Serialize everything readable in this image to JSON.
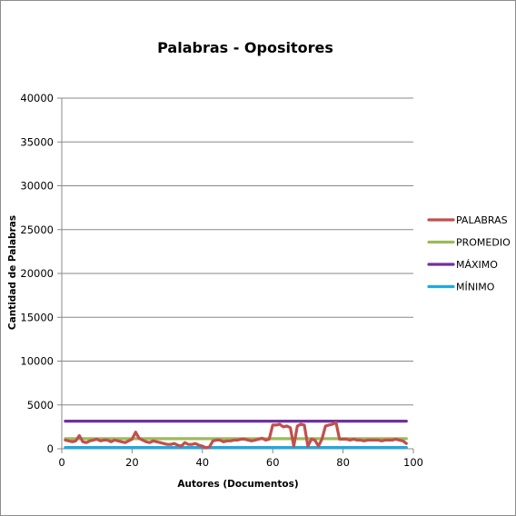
{
  "chart_data": {
    "type": "line",
    "title": "Palabras - Opositores",
    "xlabel": "Autores (Documentos)",
    "ylabel": "Cantidad de Palabras",
    "xlim": [
      0,
      100
    ],
    "ylim": [
      0,
      40000
    ],
    "xticks": [
      0,
      20,
      40,
      60,
      80,
      100
    ],
    "yticks": [
      0,
      5000,
      10000,
      15000,
      20000,
      25000,
      30000,
      35000,
      40000
    ],
    "grid": "horizontal",
    "legend_position": "right",
    "x": [
      1,
      2,
      3,
      4,
      5,
      6,
      7,
      8,
      9,
      10,
      11,
      12,
      13,
      14,
      15,
      16,
      17,
      18,
      19,
      20,
      21,
      22,
      23,
      24,
      25,
      26,
      27,
      28,
      29,
      30,
      31,
      32,
      33,
      34,
      35,
      36,
      37,
      38,
      39,
      40,
      41,
      42,
      43,
      44,
      45,
      46,
      47,
      48,
      49,
      50,
      51,
      52,
      53,
      54,
      55,
      56,
      57,
      58,
      59,
      60,
      61,
      62,
      63,
      64,
      65,
      66,
      67,
      68,
      69,
      70,
      71,
      72,
      73,
      74,
      75,
      76,
      77,
      78,
      79,
      80,
      81,
      82,
      83,
      84,
      85,
      86,
      87,
      88,
      89,
      90,
      91,
      92,
      93,
      94,
      95,
      96,
      97,
      98
    ],
    "series": [
      {
        "name": "PALABRAS",
        "color": "#c0504d",
        "values": [
          1000,
          900,
          800,
          900,
          1500,
          800,
          700,
          900,
          1000,
          1100,
          900,
          1000,
          1000,
          800,
          1000,
          900,
          800,
          700,
          900,
          1100,
          1900,
          1200,
          1000,
          800,
          700,
          900,
          800,
          700,
          600,
          500,
          500,
          600,
          400,
          300,
          700,
          500,
          500,
          600,
          400,
          300,
          100,
          200,
          900,
          1000,
          1000,
          800,
          900,
          900,
          1000,
          1000,
          1100,
          1100,
          1000,
          900,
          1000,
          1100,
          1200,
          1000,
          1100,
          2700,
          2700,
          2800,
          2500,
          2600,
          2400,
          300,
          2600,
          2800,
          2700,
          300,
          1100,
          1000,
          300,
          1100,
          2600,
          2700,
          2800,
          3000,
          1100,
          1100,
          1100,
          1000,
          1100,
          1000,
          1000,
          900,
          1000,
          1000,
          1000,
          1000,
          900,
          1000,
          1000,
          1000,
          1100,
          1000,
          900,
          600
        ]
      },
      {
        "name": "PROMEDIO",
        "color": "#9bbb59",
        "values": [
          1150,
          1150,
          1150,
          1150,
          1150,
          1150,
          1150,
          1150,
          1150,
          1150,
          1150,
          1150,
          1150,
          1150,
          1150,
          1150,
          1150,
          1150,
          1150,
          1150,
          1150,
          1150,
          1150,
          1150,
          1150,
          1150,
          1150,
          1150,
          1150,
          1150,
          1150,
          1150,
          1150,
          1150,
          1150,
          1150,
          1150,
          1150,
          1150,
          1150,
          1150,
          1150,
          1150,
          1150,
          1150,
          1150,
          1150,
          1150,
          1150,
          1150,
          1150,
          1150,
          1150,
          1150,
          1150,
          1150,
          1150,
          1150,
          1150,
          1150,
          1150,
          1150,
          1150,
          1150,
          1150,
          1150,
          1150,
          1150,
          1150,
          1150,
          1150,
          1150,
          1150,
          1150,
          1150,
          1150,
          1150,
          1150,
          1150,
          1150,
          1150,
          1150,
          1150,
          1150,
          1150,
          1150,
          1150,
          1150,
          1150,
          1150,
          1150,
          1150,
          1150,
          1150,
          1150,
          1150,
          1150,
          1150
        ]
      },
      {
        "name": "MÁXIMO",
        "color": "#7030a0",
        "values": [
          3150,
          3150,
          3150,
          3150,
          3150,
          3150,
          3150,
          3150,
          3150,
          3150,
          3150,
          3150,
          3150,
          3150,
          3150,
          3150,
          3150,
          3150,
          3150,
          3150,
          3150,
          3150,
          3150,
          3150,
          3150,
          3150,
          3150,
          3150,
          3150,
          3150,
          3150,
          3150,
          3150,
          3150,
          3150,
          3150,
          3150,
          3150,
          3150,
          3150,
          3150,
          3150,
          3150,
          3150,
          3150,
          3150,
          3150,
          3150,
          3150,
          3150,
          3150,
          3150,
          3150,
          3150,
          3150,
          3150,
          3150,
          3150,
          3150,
          3150,
          3150,
          3150,
          3150,
          3150,
          3150,
          3150,
          3150,
          3150,
          3150,
          3150,
          3150,
          3150,
          3150,
          3150,
          3150,
          3150,
          3150,
          3150,
          3150,
          3150,
          3150,
          3150,
          3150,
          3150,
          3150,
          3150,
          3150,
          3150,
          3150,
          3150,
          3150,
          3150,
          3150,
          3150,
          3150,
          3150,
          3150,
          3150
        ]
      },
      {
        "name": "MÍNIMO",
        "color": "#1fa9e0",
        "values": [
          150,
          150,
          150,
          150,
          150,
          150,
          150,
          150,
          150,
          150,
          150,
          150,
          150,
          150,
          150,
          150,
          150,
          150,
          150,
          150,
          150,
          150,
          150,
          150,
          150,
          150,
          150,
          150,
          150,
          150,
          150,
          150,
          150,
          150,
          150,
          150,
          150,
          150,
          150,
          150,
          150,
          150,
          150,
          150,
          150,
          150,
          150,
          150,
          150,
          150,
          150,
          150,
          150,
          150,
          150,
          150,
          150,
          150,
          150,
          150,
          150,
          150,
          150,
          150,
          150,
          150,
          150,
          150,
          150,
          150,
          150,
          150,
          150,
          150,
          150,
          150,
          150,
          150,
          150,
          150,
          150,
          150,
          150,
          150,
          150,
          150,
          150,
          150,
          150,
          150,
          150,
          150,
          150,
          150,
          150,
          150,
          150,
          150
        ]
      }
    ]
  }
}
